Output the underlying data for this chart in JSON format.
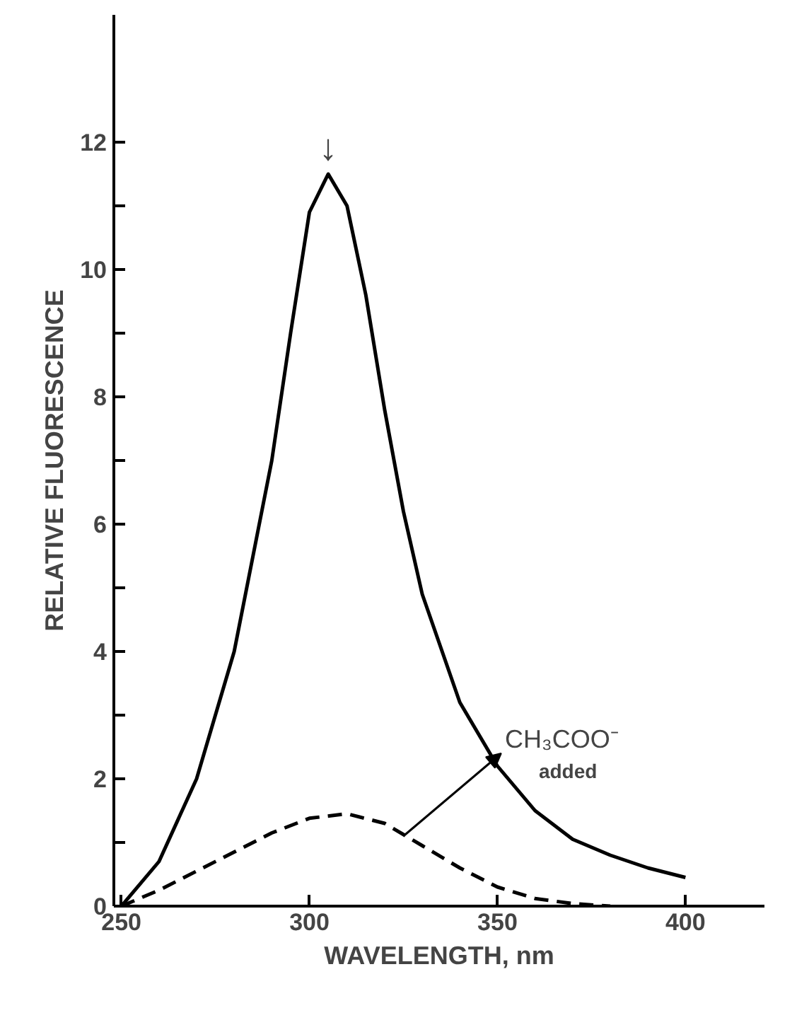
{
  "chart_data": {
    "type": "line",
    "xlabel": "WAVELENGTH, nm",
    "ylabel": "RELATIVE FLUORESCENCE",
    "xlim": [
      248,
      421
    ],
    "ylim": [
      0,
      14
    ],
    "xticks": [
      250,
      300,
      350,
      400
    ],
    "yticks": [
      0,
      {
        "value": 1,
        "label": null
      },
      2,
      {
        "value": 3,
        "label": null
      },
      4,
      {
        "value": 5,
        "label": null
      },
      6,
      {
        "value": 7,
        "label": null
      },
      8,
      {
        "value": 9,
        "label": null
      },
      10,
      {
        "value": 11,
        "label": null
      },
      12
    ],
    "grid": false,
    "series": [
      {
        "color": "#000000",
        "line_style": "solid",
        "x": [
          250,
          260,
          270,
          280,
          290,
          295,
          300,
          305,
          310,
          315,
          320,
          325,
          330,
          340,
          350,
          360,
          370,
          380,
          390,
          400
        ],
        "values": [
          0,
          0.7,
          2.0,
          4.0,
          7.0,
          9.0,
          10.9,
          11.5,
          11.0,
          9.6,
          7.8,
          6.2,
          4.9,
          3.2,
          2.2,
          1.5,
          1.05,
          0.8,
          0.6,
          0.45
        ]
      },
      {
        "color": "#000000",
        "line_style": "dashed",
        "x": [
          250,
          260,
          270,
          280,
          290,
          300,
          310,
          320,
          330,
          340,
          350,
          360,
          370,
          380
        ],
        "values": [
          0,
          0.25,
          0.55,
          0.85,
          1.15,
          1.38,
          1.45,
          1.3,
          0.95,
          0.6,
          0.3,
          0.12,
          0.04,
          0
        ]
      }
    ],
    "annotations": [
      {
        "text": "↓",
        "x": 305,
        "y": 11.5
      },
      {
        "text": "CH₃COO⁻ added",
        "x": 325,
        "y": 1.1
      }
    ]
  }
}
